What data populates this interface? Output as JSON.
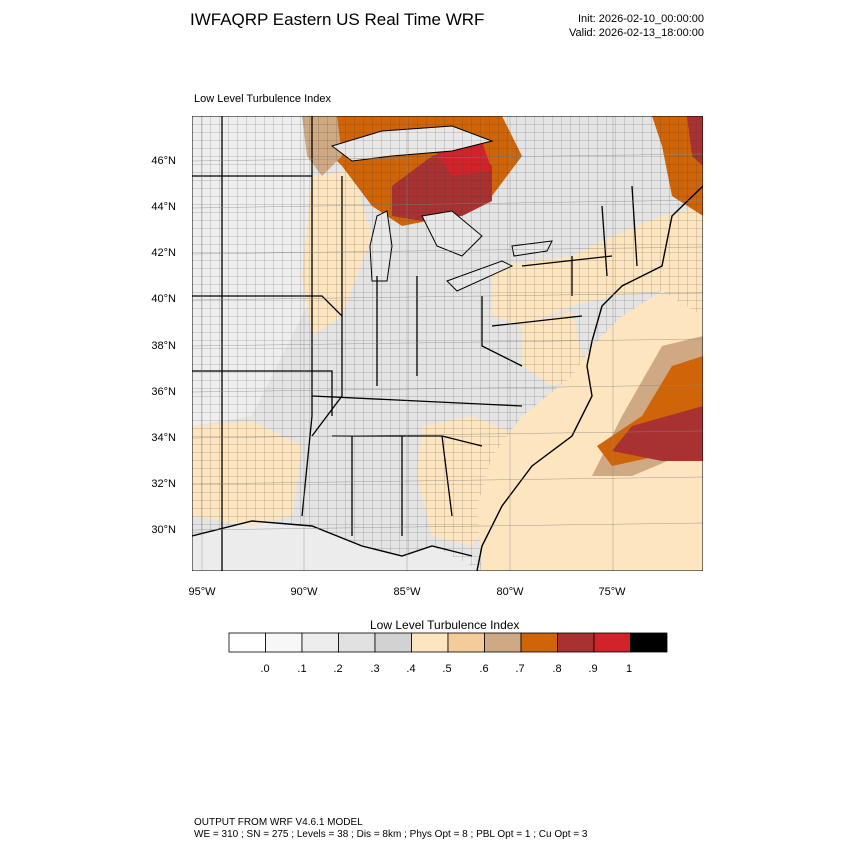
{
  "header": {
    "title": "IWFAQRP Eastern US Real Time WRF",
    "init": "Init: 2026-02-10_00:00:00",
    "valid": "Valid: 2026-02-13_18:00:00"
  },
  "map": {
    "subtitle": "Low Level Turbulence Index",
    "lat_labels": [
      "46°N",
      "44°N",
      "42°N",
      "40°N",
      "38°N",
      "36°N",
      "34°N",
      "32°N",
      "30°N"
    ],
    "lon_labels": [
      "95°W",
      "90°W",
      "85°W",
      "80°W",
      "75°W"
    ],
    "field": "Low Level Turbulence Index",
    "high_regions": [
      "Upper Michigan / Lake Superior",
      "Northern Lower Michigan",
      "Atlantic offshore east of North Carolina",
      "Maine / Nova Scotia coast"
    ]
  },
  "colorbar": {
    "title": "Low Level Turbulence Index",
    "colors": [
      "#ffffff",
      "#f7f7f7",
      "#ededed",
      "#e1e1e1",
      "#d2d2d2",
      "#fde5bf",
      "#f3cc9a",
      "#cfa984",
      "#cf6508",
      "#a83232",
      "#d2232a",
      "#000000"
    ],
    "labels": [
      ".0",
      ".1",
      ".2",
      ".3",
      ".4",
      ".5",
      ".6",
      ".7",
      ".8",
      ".9",
      "1"
    ]
  },
  "footer": {
    "line1": "OUTPUT FROM WRF V4.6.1 MODEL",
    "line2": "WE = 310 ; SN = 275 ; Levels = 38 ; Dis = 8km ; Phys Opt = 8 ; PBL Opt = 1 ; Cu Opt = 3"
  }
}
